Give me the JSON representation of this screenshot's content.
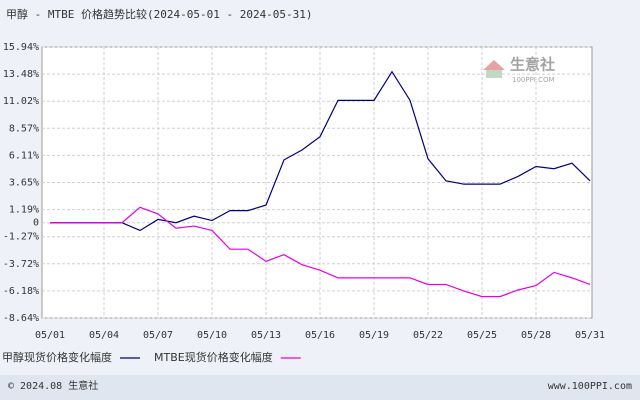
{
  "chart_data": {
    "type": "line",
    "title": "甲醇 - MTBE 价格趋势比较(2024-05-01 - 2024-05-31)",
    "categories": [
      "05/01",
      null,
      null,
      "05/04",
      null,
      null,
      "05/07",
      null,
      null,
      "05/10",
      null,
      null,
      "05/13",
      null,
      null,
      "05/16",
      null,
      null,
      "05/19",
      null,
      null,
      "05/22",
      null,
      null,
      "05/25",
      null,
      null,
      "05/28",
      null,
      null,
      "05/31"
    ],
    "series": [
      {
        "name": "甲醇现货价格变化幅度",
        "color": "#000080",
        "values": [
          0,
          0,
          0,
          0,
          0,
          -0.7,
          0.3,
          0,
          0.6,
          0.2,
          1.1,
          1.1,
          1.6,
          5.7,
          6.6,
          7.8,
          11.1,
          11.1,
          11.1,
          13.7,
          11.1,
          5.8,
          3.8,
          3.5,
          3.5,
          3.5,
          4.2,
          5.1,
          4.9,
          5.4,
          3.8
        ]
      },
      {
        "name": "MTBE现货价格变化幅度",
        "color": "#e600e6",
        "values": [
          0,
          0,
          0,
          0,
          0,
          1.4,
          0.8,
          -0.5,
          -0.3,
          -0.7,
          -2.4,
          -2.4,
          -3.5,
          -2.9,
          -3.8,
          -4.3,
          -5.0,
          -5.0,
          -5.0,
          -5.0,
          -5.0,
          -5.6,
          -5.6,
          -6.2,
          -6.7,
          -6.7,
          -6.1,
          -5.7,
          -4.5,
          -5.0,
          -5.6
        ]
      }
    ],
    "ylim": [
      -8.64,
      15.94
    ],
    "yticks": [
      {
        "value": 15.94,
        "label": "15.94%"
      },
      {
        "value": 13.48,
        "label": "13.48%"
      },
      {
        "value": 11.02,
        "label": "11.02%"
      },
      {
        "value": 8.57,
        "label": "8.57%"
      },
      {
        "value": 6.11,
        "label": "6.11%"
      },
      {
        "value": 3.65,
        "label": "3.65%"
      },
      {
        "value": 1.19,
        "label": "1.19%"
      },
      0,
      {
        "value": -1.27,
        "label": "-1.27%"
      },
      {
        "value": -3.72,
        "label": "-3.72%"
      },
      {
        "value": -6.18,
        "label": "-6.18%"
      },
      {
        "value": -8.64,
        "label": "-8.64%"
      }
    ],
    "grid": true
  },
  "watermark": {
    "name": "生意社",
    "url": "100PPI.COM"
  },
  "footer": {
    "copyright": "© 2024.08 生意社",
    "url": "www.100PPI.com"
  }
}
